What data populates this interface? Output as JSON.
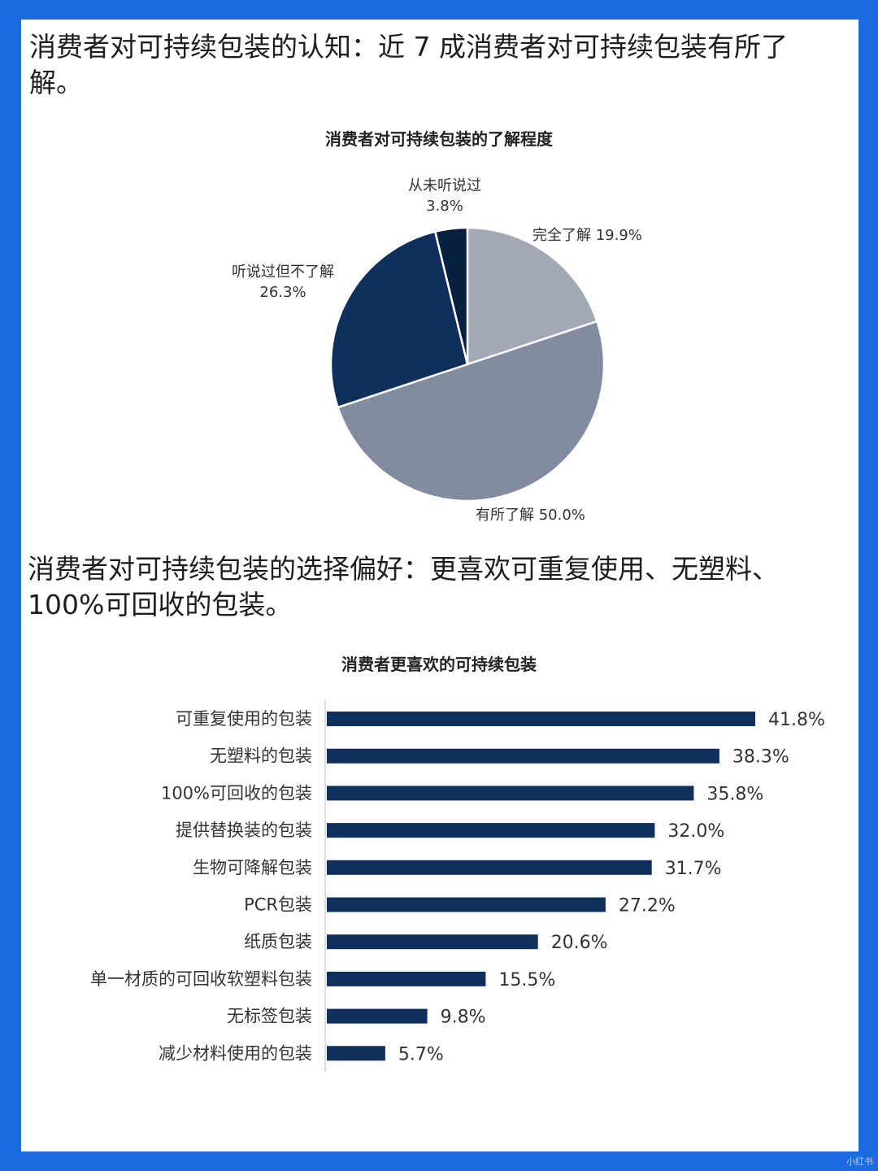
{
  "headlines": {
    "h1": "消费者对可持续包装的认知：近 7 成消费者对可持续包装有所了解。",
    "h2": "消费者对可持续包装的选择偏好：更喜欢可重复使用、无塑料、100%可回收的包装。"
  },
  "watermark": "小红书",
  "chart_data": [
    {
      "type": "pie",
      "title": "消费者对可持续包装的了解程度",
      "slices": [
        {
          "label": "完全了解",
          "value": 19.9,
          "text": "19.9%",
          "color": "#a3a8b5"
        },
        {
          "label": "有所了解",
          "value": 50.0,
          "text": "50.0%",
          "color": "#838ba0"
        },
        {
          "label": "听说过但不了解",
          "value": 26.3,
          "text": "26.3%",
          "color": "#0f2f5c"
        },
        {
          "label": "从未听说过",
          "value": 3.8,
          "text": "3.8%",
          "color": "#06203f"
        }
      ]
    },
    {
      "type": "bar",
      "orientation": "horizontal",
      "title": "消费者更喜欢的可持续包装",
      "categories": [
        "可重复使用的包装",
        "无塑料的包装",
        "100%可回收的包装",
        "提供替换装的包装",
        "生物可降解包装",
        "PCR包装",
        "纸质包装",
        "单一材质的可回收软塑料包装",
        "无标签包装",
        "减少材料使用的包装"
      ],
      "values": [
        41.8,
        38.3,
        35.8,
        32.0,
        31.7,
        27.2,
        20.6,
        15.5,
        9.8,
        5.7
      ],
      "labels": [
        "41.8%",
        "38.3%",
        "35.8%",
        "32.0%",
        "31.7%",
        "27.2%",
        "20.6%",
        "15.5%",
        "9.8%",
        "5.7%"
      ],
      "color": "#0f2f5c"
    }
  ]
}
